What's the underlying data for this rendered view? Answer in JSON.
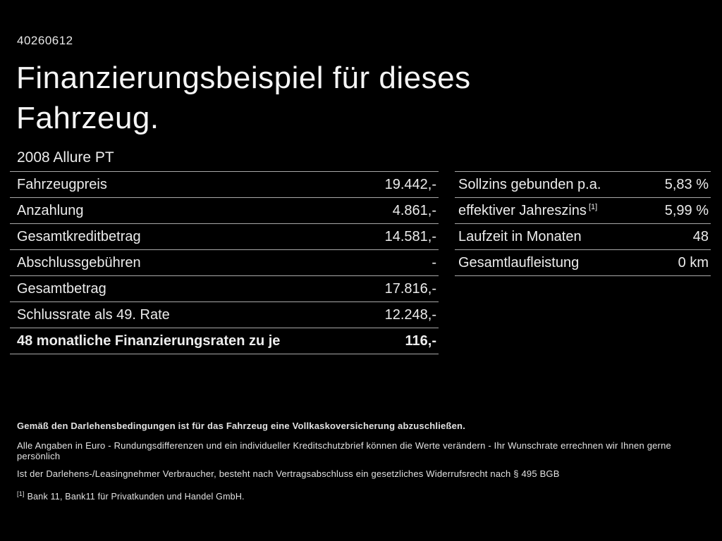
{
  "page": {
    "id_number": "40260612",
    "title_line1": "Finanzierungsbeispiel für dieses",
    "title_line2": "Fahrzeug.",
    "subtitle": "2008 Allure PT"
  },
  "left_table": {
    "rows": [
      {
        "label": "Fahrzeugpreis",
        "value": "19.442,-"
      },
      {
        "label": "Anzahlung",
        "value": "4.861,-"
      },
      {
        "label": "Gesamtkreditbetrag",
        "value": "14.581,-"
      },
      {
        "label": "Abschlussgebühren",
        "value": "-"
      },
      {
        "label": "Gesamtbetrag",
        "value": "17.816,-"
      },
      {
        "label": "Schlussrate als 49. Rate",
        "value": "12.248,-"
      },
      {
        "label": "48 monatliche Finanzierungsraten zu je",
        "value": "116,-"
      }
    ]
  },
  "right_table": {
    "rows": [
      {
        "label": "Sollzins gebunden p.a.",
        "sup": "",
        "value": "5,83 %"
      },
      {
        "label": "effektiver Jahreszins",
        "sup": "[1]",
        "value": "5,99 %"
      },
      {
        "label": "Laufzeit in Monaten",
        "sup": "",
        "value": "48"
      },
      {
        "label": "Gesamtlaufleistung",
        "sup": "",
        "value": "0 km"
      }
    ]
  },
  "footer": {
    "bold_note": "Gemäß den Darlehensbedingungen ist für das Fahrzeug eine Vollkaskoversicherung abzuschließen.",
    "note_line2": "Alle Angaben in Euro - Rundungsdifferenzen und ein individueller Kreditschutzbrief können die Werte verändern - Ihr Wunschrate errechnen wir Ihnen gerne persönlich",
    "note_line3": "Ist der Darlehens-/Leasingnehmer Verbraucher, besteht nach Vertragsabschluss ein gesetzliches Widerrufsrecht nach § 495 BGB",
    "footnote_marker": "[1]",
    "footnote_text": "Bank 11, Bank11 für Privatkunden und Handel GmbH."
  },
  "colors": {
    "background": "#000000",
    "text": "#efefef",
    "divider": "#a9a9a9"
  }
}
